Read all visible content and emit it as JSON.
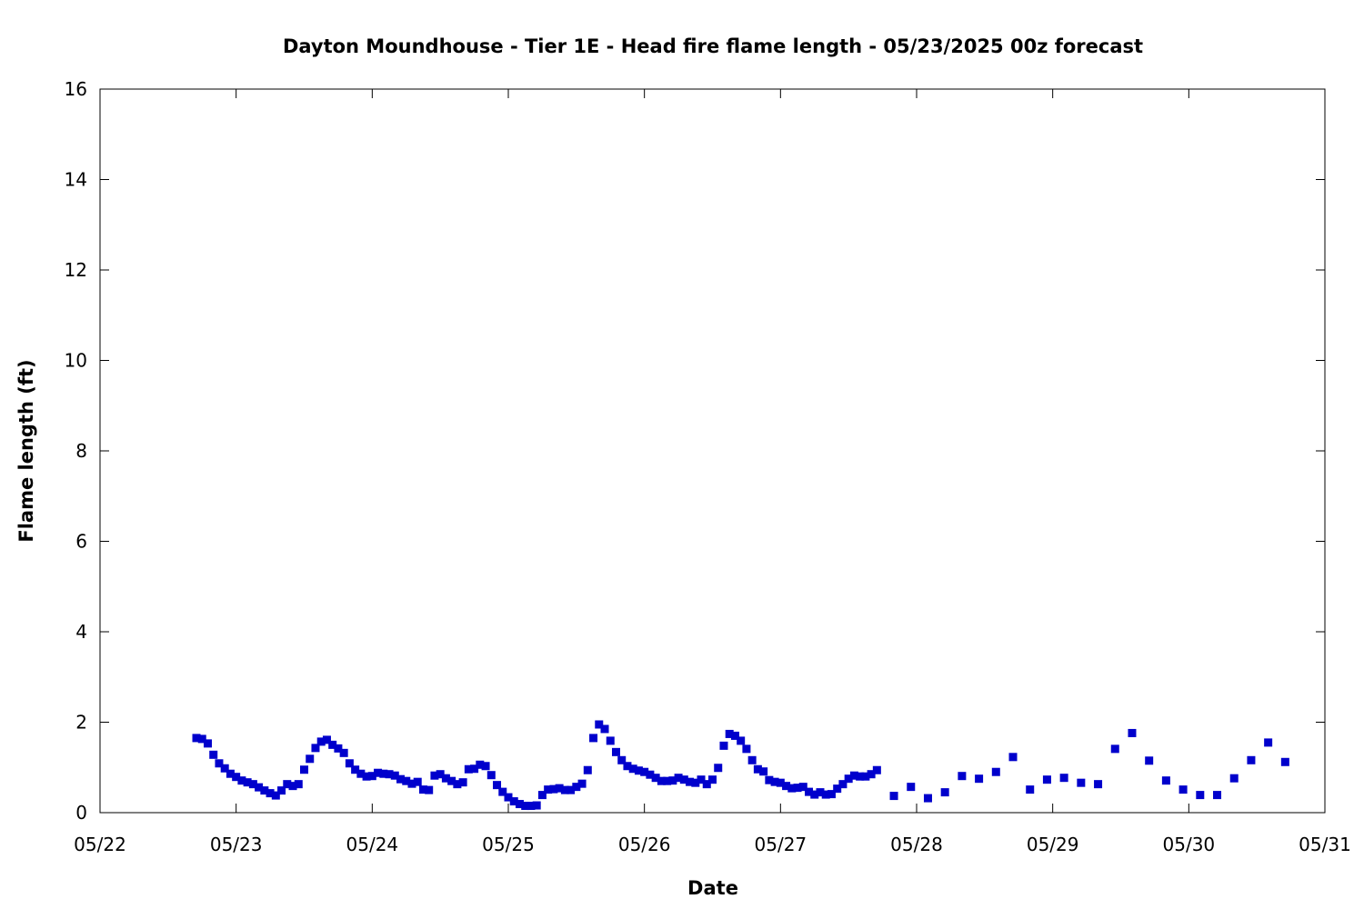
{
  "chart_data": {
    "type": "scatter",
    "title": "Dayton Moundhouse - Tier 1E - Head fire flame length - 05/23/2025 00z forecast",
    "xlabel": "Date",
    "ylabel": "Flame length (ft)",
    "x_ticks": [
      "05/22",
      "05/23",
      "05/24",
      "05/25",
      "05/26",
      "05/27",
      "05/28",
      "05/29",
      "05/30",
      "05/31"
    ],
    "y_ticks": [
      0,
      2,
      4,
      6,
      8,
      10,
      12,
      14,
      16
    ],
    "ylim": [
      0,
      16
    ],
    "xlim": [
      "2025-05-22",
      "2025-05-31"
    ],
    "grid": false,
    "marker_color": "#0000cc",
    "x": [
      "2025-05-22T17:00",
      "2025-05-22T18:00",
      "2025-05-22T19:00",
      "2025-05-22T20:00",
      "2025-05-22T21:00",
      "2025-05-22T22:00",
      "2025-05-22T23:00",
      "2025-05-23T00:00",
      "2025-05-23T01:00",
      "2025-05-23T02:00",
      "2025-05-23T03:00",
      "2025-05-23T04:00",
      "2025-05-23T05:00",
      "2025-05-23T06:00",
      "2025-05-23T07:00",
      "2025-05-23T08:00",
      "2025-05-23T09:00",
      "2025-05-23T10:00",
      "2025-05-23T11:00",
      "2025-05-23T12:00",
      "2025-05-23T13:00",
      "2025-05-23T14:00",
      "2025-05-23T15:00",
      "2025-05-23T16:00",
      "2025-05-23T17:00",
      "2025-05-23T18:00",
      "2025-05-23T19:00",
      "2025-05-23T20:00",
      "2025-05-23T21:00",
      "2025-05-23T22:00",
      "2025-05-23T23:00",
      "2025-05-24T00:00",
      "2025-05-24T01:00",
      "2025-05-24T02:00",
      "2025-05-24T03:00",
      "2025-05-24T04:00",
      "2025-05-24T05:00",
      "2025-05-24T06:00",
      "2025-05-24T07:00",
      "2025-05-24T08:00",
      "2025-05-24T09:00",
      "2025-05-24T10:00",
      "2025-05-24T11:00",
      "2025-05-24T12:00",
      "2025-05-24T13:00",
      "2025-05-24T14:00",
      "2025-05-24T15:00",
      "2025-05-24T16:00",
      "2025-05-24T17:00",
      "2025-05-24T18:00",
      "2025-05-24T19:00",
      "2025-05-24T20:00",
      "2025-05-24T21:00",
      "2025-05-24T22:00",
      "2025-05-24T23:00",
      "2025-05-25T00:00",
      "2025-05-25T01:00",
      "2025-05-25T02:00",
      "2025-05-25T03:00",
      "2025-05-25T04:00",
      "2025-05-25T05:00",
      "2025-05-25T06:00",
      "2025-05-25T07:00",
      "2025-05-25T08:00",
      "2025-05-25T09:00",
      "2025-05-25T10:00",
      "2025-05-25T11:00",
      "2025-05-25T12:00",
      "2025-05-25T13:00",
      "2025-05-25T14:00",
      "2025-05-25T15:00",
      "2025-05-25T16:00",
      "2025-05-25T17:00",
      "2025-05-25T18:00",
      "2025-05-25T19:00",
      "2025-05-25T20:00",
      "2025-05-25T21:00",
      "2025-05-25T22:00",
      "2025-05-25T23:00",
      "2025-05-26T00:00",
      "2025-05-26T01:00",
      "2025-05-26T02:00",
      "2025-05-26T03:00",
      "2025-05-26T04:00",
      "2025-05-26T05:00",
      "2025-05-26T06:00",
      "2025-05-26T07:00",
      "2025-05-26T08:00",
      "2025-05-26T09:00",
      "2025-05-26T10:00",
      "2025-05-26T11:00",
      "2025-05-26T12:00",
      "2025-05-26T13:00",
      "2025-05-26T14:00",
      "2025-05-26T15:00",
      "2025-05-26T16:00",
      "2025-05-26T17:00",
      "2025-05-26T18:00",
      "2025-05-26T19:00",
      "2025-05-26T20:00",
      "2025-05-26T21:00",
      "2025-05-26T22:00",
      "2025-05-26T23:00",
      "2025-05-27T00:00",
      "2025-05-27T01:00",
      "2025-05-27T02:00",
      "2025-05-27T03:00",
      "2025-05-27T04:00",
      "2025-05-27T05:00",
      "2025-05-27T06:00",
      "2025-05-27T07:00",
      "2025-05-27T08:00",
      "2025-05-27T09:00",
      "2025-05-27T10:00",
      "2025-05-27T11:00",
      "2025-05-27T12:00",
      "2025-05-27T13:00",
      "2025-05-27T14:00",
      "2025-05-27T15:00",
      "2025-05-27T16:00",
      "2025-05-27T17:00",
      "2025-05-27T20:00",
      "2025-05-27T23:00",
      "2025-05-28T02:00",
      "2025-05-28T05:00",
      "2025-05-28T08:00",
      "2025-05-28T11:00",
      "2025-05-28T14:00",
      "2025-05-28T17:00",
      "2025-05-28T20:00",
      "2025-05-28T23:00",
      "2025-05-29T02:00",
      "2025-05-29T05:00",
      "2025-05-29T08:00",
      "2025-05-29T11:00",
      "2025-05-29T14:00",
      "2025-05-29T17:00",
      "2025-05-29T20:00",
      "2025-05-29T23:00",
      "2025-05-30T02:00",
      "2025-05-30T05:00",
      "2025-05-30T08:00",
      "2025-05-30T11:00",
      "2025-05-30T14:00",
      "2025-05-30T17:00"
    ],
    "y": [
      1.65,
      1.63,
      1.53,
      1.28,
      1.09,
      0.98,
      0.86,
      0.79,
      0.71,
      0.67,
      0.63,
      0.56,
      0.49,
      0.43,
      0.38,
      0.49,
      0.63,
      0.59,
      0.63,
      0.95,
      1.19,
      1.43,
      1.57,
      1.61,
      1.5,
      1.42,
      1.32,
      1.09,
      0.95,
      0.86,
      0.8,
      0.81,
      0.88,
      0.86,
      0.85,
      0.82,
      0.74,
      0.7,
      0.64,
      0.68,
      0.51,
      0.5,
      0.82,
      0.85,
      0.76,
      0.7,
      0.63,
      0.67,
      0.96,
      0.97,
      1.06,
      1.03,
      0.83,
      0.61,
      0.46,
      0.34,
      0.25,
      0.19,
      0.15,
      0.15,
      0.16,
      0.39,
      0.51,
      0.52,
      0.54,
      0.5,
      0.5,
      0.57,
      0.64,
      0.94,
      1.65,
      1.95,
      1.85,
      1.59,
      1.34,
      1.16,
      1.03,
      0.97,
      0.93,
      0.9,
      0.84,
      0.77,
      0.7,
      0.7,
      0.71,
      0.77,
      0.73,
      0.68,
      0.66,
      0.73,
      0.63,
      0.73,
      0.99,
      1.48,
      1.74,
      1.7,
      1.59,
      1.41,
      1.16,
      0.96,
      0.91,
      0.72,
      0.68,
      0.66,
      0.59,
      0.54,
      0.55,
      0.57,
      0.46,
      0.4,
      0.45,
      0.4,
      0.41,
      0.53,
      0.63,
      0.75,
      0.82,
      0.8,
      0.8,
      0.85,
      0.94,
      0.37,
      0.57,
      0.32,
      0.45,
      0.81,
      0.75,
      0.9,
      1.23,
      0.51,
      0.73,
      0.77,
      0.66,
      0.63,
      1.41,
      1.76,
      1.15,
      0.71,
      0.51,
      0.39,
      0.39,
      0.76,
      1.16,
      1.55,
      1.12
    ]
  }
}
